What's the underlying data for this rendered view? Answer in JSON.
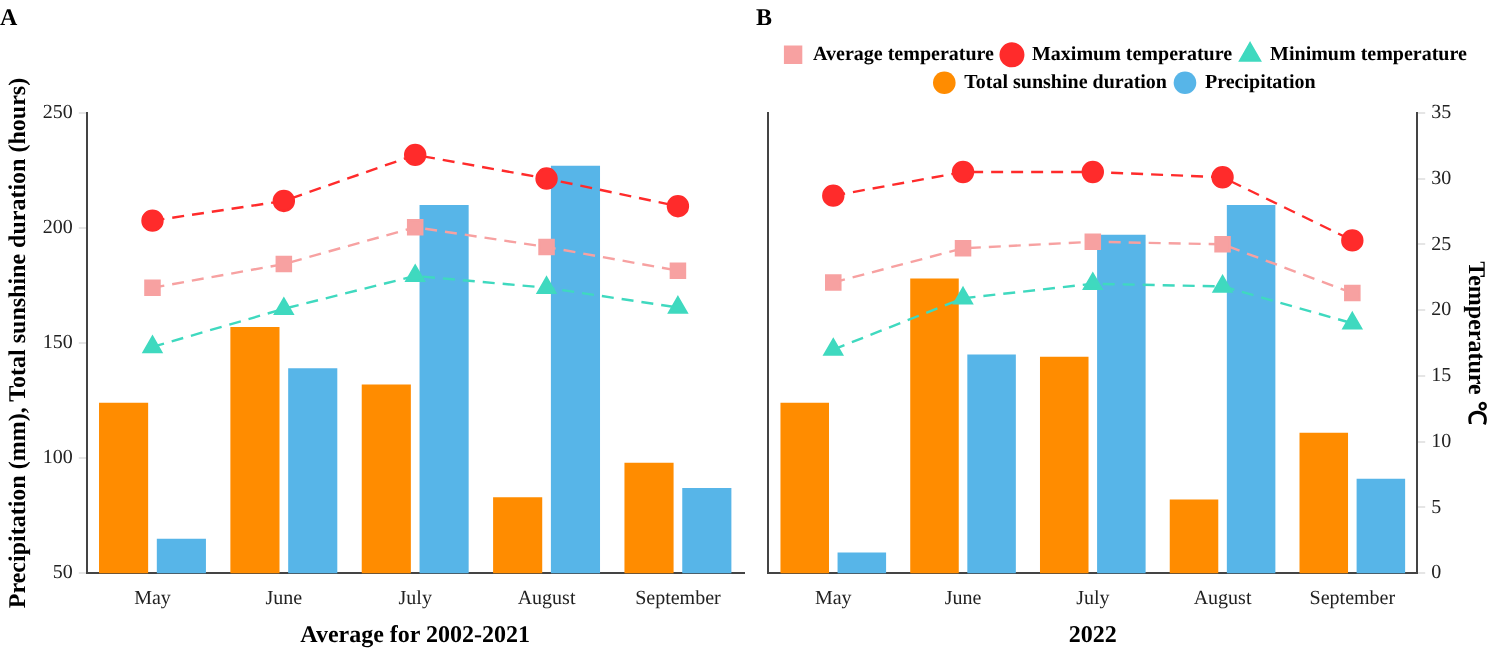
{
  "chart_data": [
    {
      "type": "bar",
      "title": "A",
      "xlabel": "Average for 2002-2021",
      "ylabel": "Precipitation (mm), Total sunshine duration (hours)",
      "categories": [
        "May",
        "June",
        "July",
        "August",
        "September"
      ],
      "series": [
        {
          "type": "line",
          "axis": "y2",
          "color": "#f7a1a1",
          "marker": "square",
          "line_style": "dashed",
          "values": [
            21.7,
            23.5,
            26.3,
            24.8,
            23.0
          ]
        },
        {
          "type": "line",
          "axis": "y2",
          "color": "#ff2b2b",
          "marker": "circle",
          "line_style": "dashed",
          "values": [
            26.8,
            28.3,
            31.8,
            30.0,
            27.9
          ]
        },
        {
          "type": "line",
          "axis": "y2",
          "color": "#3fd9bf",
          "marker": "triangle",
          "line_style": "dashed",
          "values": [
            17.2,
            20.1,
            22.6,
            21.7,
            20.2
          ]
        },
        {
          "color": "#ff8c00",
          "values": [
            124,
            157,
            132,
            83,
            98
          ]
        },
        {
          "color": "#57b5e8",
          "values": [
            65,
            139,
            210,
            227,
            87
          ]
        }
      ],
      "ylim": [
        50,
        250
      ],
      "yticks": [
        50,
        100,
        150,
        200,
        250
      ],
      "y2lim": [
        0,
        35
      ],
      "tick_labels": [
        "x",
        "y"
      ],
      "grid": false
    },
    {
      "type": "bar",
      "title": "B",
      "xlabel": "2022",
      "y2label": "Temperature ℃",
      "categories": [
        "May",
        "June",
        "July",
        "August",
        "September"
      ],
      "series": [
        {
          "name": "Average temperature",
          "type": "line",
          "axis": "y2",
          "color": "#f7a1a1",
          "marker": "square",
          "line_style": "dashed",
          "values": [
            22.1,
            24.7,
            25.2,
            25.0,
            21.3
          ]
        },
        {
          "name": "Maximum temperature",
          "type": "line",
          "axis": "y2",
          "color": "#ff2b2b",
          "marker": "circle",
          "line_style": "dashed",
          "values": [
            28.7,
            30.5,
            30.5,
            30.1,
            25.3
          ]
        },
        {
          "name": "Minimum temperature",
          "type": "line",
          "axis": "y2",
          "color": "#3fd9bf",
          "marker": "triangle",
          "line_style": "dashed",
          "values": [
            17.0,
            20.9,
            22.0,
            21.8,
            19.0
          ]
        },
        {
          "name": "Total sunshine duration",
          "color": "#ff8c00",
          "values": [
            124,
            178,
            144,
            82,
            111
          ]
        },
        {
          "name": "Precipitation",
          "color": "#57b5e8",
          "values": [
            59,
            145,
            197,
            210,
            91
          ]
        }
      ],
      "ylim": [
        50,
        250
      ],
      "y2lim": [
        0,
        35
      ],
      "y2ticks": [
        0,
        5,
        10,
        15,
        20,
        25,
        30,
        35
      ],
      "tick_labels": [
        "x",
        "y2"
      ],
      "grid": false,
      "legend": "top"
    }
  ]
}
